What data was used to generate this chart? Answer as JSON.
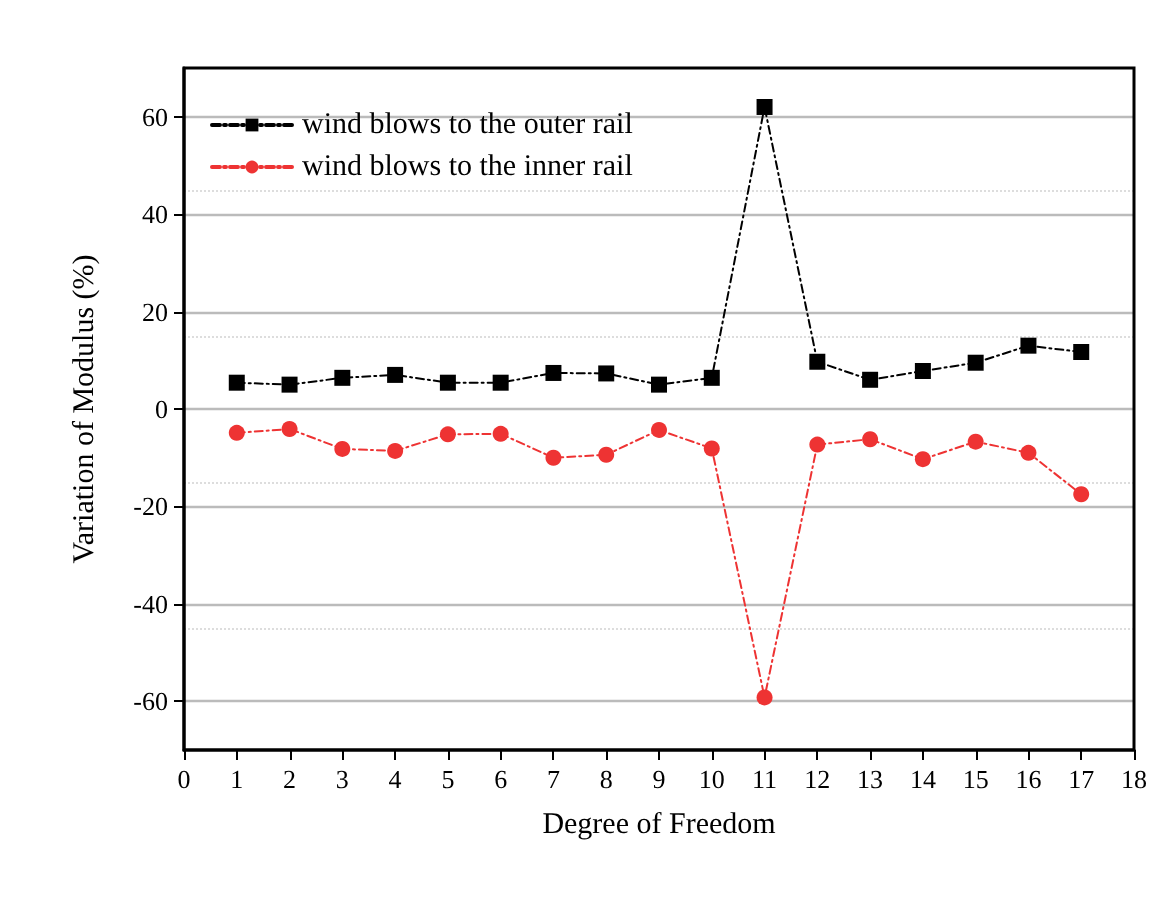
{
  "chart_data": {
    "type": "line",
    "xlabel": "Degree of Freedom",
    "ylabel": "Variation of Modulus (%)",
    "xlim": [
      0,
      18
    ],
    "xticks": [
      0,
      1,
      2,
      3,
      4,
      5,
      6,
      7,
      8,
      9,
      10,
      11,
      12,
      13,
      14,
      15,
      16,
      17,
      18
    ],
    "ylim": [
      -70,
      70
    ],
    "yticks": [
      -60,
      -40,
      -20,
      0,
      20,
      40,
      60
    ],
    "grid": "y",
    "legend": "top left",
    "line_style": "dashed",
    "x": [
      1,
      2,
      3,
      4,
      5,
      6,
      7,
      8,
      9,
      10,
      11,
      12,
      13,
      14,
      15,
      16,
      17
    ],
    "series": [
      {
        "name": "wind blows to the outer rail",
        "color": "#000000",
        "marker": "square",
        "values": [
          5.4,
          5.0,
          6.4,
          7.0,
          5.4,
          5.4,
          7.4,
          7.3,
          5.0,
          6.4,
          62,
          9.7,
          6.0,
          7.8,
          9.5,
          13,
          11.7
        ]
      },
      {
        "name": "wind blows to the inner rail",
        "color": "#ee3333",
        "marker": "circle",
        "values": [
          -4.9,
          -4.1,
          -8.2,
          -8.6,
          -5.2,
          -5.1,
          -10,
          -9.4,
          -4.3,
          -8.1,
          -59.2,
          -7.3,
          -6.2,
          -10.3,
          -6.7,
          -9.0,
          -17.5
        ]
      }
    ]
  }
}
